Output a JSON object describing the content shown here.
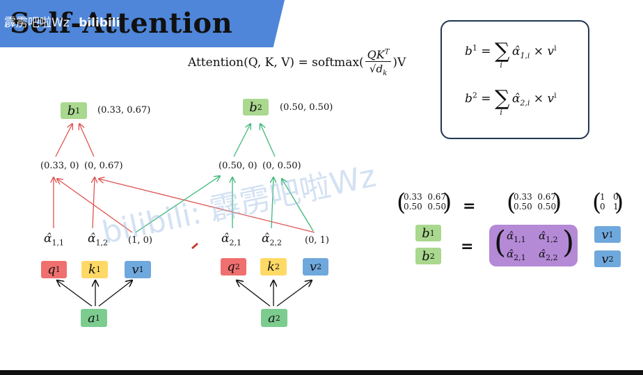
{
  "title": "Self-Attention",
  "watermark_top": "霹雳吧啦Wz",
  "watermark_top_logo": "bilibili",
  "watermark_center": "bilibili: 霹雳吧啦Wz",
  "formula": {
    "lhs": "Attention(Q, K, V) = softmax(",
    "num": "QK",
    "num_sup": "T",
    "den": "√d",
    "den_sub": "k",
    "rhs": ")V"
  },
  "left": {
    "output_label": "b",
    "output_sub": "1",
    "output_value": "(0.33, 0.67)",
    "weighted_a": "(0.33, 0)",
    "weighted_b": "(0, 0.67)",
    "alpha_a": "α̂",
    "alpha_a_sub": "1,1",
    "alpha_b": "α̂",
    "alpha_b_sub": "1,2",
    "v_value": "(1, 0)",
    "q": "q",
    "q_sup": "1",
    "k": "k",
    "k_sup": "1",
    "v": "v",
    "v_sup": "1",
    "input": "a",
    "input_sub": "1"
  },
  "right": {
    "output_label": "b",
    "output_sub": "2",
    "output_value": "(0.50, 0.50)",
    "weighted_a": "(0.50, 0)",
    "weighted_b": "(0, 0.50)",
    "alpha_a": "α̂",
    "alpha_a_sub": "2,1",
    "alpha_b": "α̂",
    "alpha_b_sub": "2,2",
    "v_value": "(0, 1)",
    "q": "q",
    "q_sup": "2",
    "k": "k",
    "k_sup": "2",
    "v": "v",
    "v_sup": "2",
    "input": "a",
    "input_sub": "2"
  },
  "sum_box": {
    "line1_lhs": "b",
    "line1_sup": "1",
    "line1_alpha_sub": "1,i",
    "line2_lhs": "b",
    "line2_sup": "2",
    "line2_alpha_sub": "2,i",
    "eq": " = ",
    "sigma": "∑",
    "sigma_sub": "i",
    "alpha": "α̂",
    "times": " × ",
    "v": "v",
    "v_sup": "i"
  },
  "matrix_eq": {
    "result": {
      "r1c1": "0.33",
      "r1c2": "0.67",
      "r2c1": "0.50",
      "r2c2": "0.50"
    },
    "middle": {
      "r1c1": "0.33",
      "r1c2": "0.67",
      "r2c1": "0.50",
      "r2c2": "0.50"
    },
    "identity": {
      "r1c1": "1",
      "r1c2": "0",
      "r2c1": "0",
      "r2c2": "1"
    },
    "eq": "=",
    "b1": "b",
    "b1_sub": "1",
    "b2": "b",
    "b2_sub": "2",
    "alpha": {
      "a11": "α̂",
      "a11_sub": "1,1",
      "a12": "α̂",
      "a12_sub": "1,2",
      "a21": "α̂",
      "a21_sub": "2,1",
      "a22": "α̂",
      "a22_sub": "2,2"
    },
    "v1": "v",
    "v1_sup": "1",
    "v2": "v",
    "v2_sup": "2"
  },
  "colors": {
    "title_bar": "#4f86d9",
    "output_box": "#a9d88e",
    "input_box": "#7dcc8f",
    "q_box": "#f06f6f",
    "k_box": "#ffd966",
    "v_box": "#6fa8dc",
    "alpha_matrix": "#b489d6",
    "red_arrow": "#e05252",
    "green_arrow": "#3cb878"
  }
}
